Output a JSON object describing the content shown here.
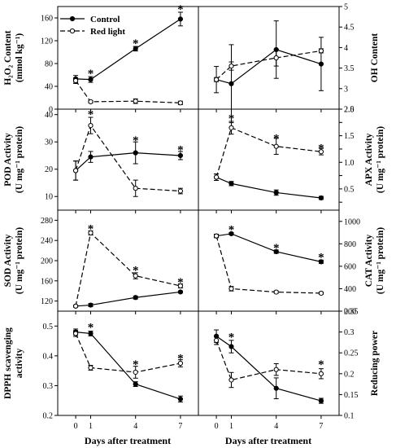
{
  "x_axis_label": "Days after treatment",
  "legend": {
    "control": "Control",
    "red": "Red light"
  },
  "colors": {
    "line": "#000000",
    "open_marker_fill": "#ffffff"
  },
  "chart_data": [
    {
      "id": "h2o2",
      "type": "line",
      "side": "left",
      "row": 0,
      "ylabel": [
        "H₂O₂ Content",
        "(mmol kg⁻¹)"
      ],
      "ylim": [
        0,
        180
      ],
      "yticks": [
        0,
        40,
        80,
        120,
        160
      ],
      "x": [
        0,
        1,
        4,
        7
      ],
      "x_ticks": [
        "0",
        "1",
        "4",
        "7"
      ],
      "series": [
        {
          "name": "Control",
          "style": "solid",
          "marker": "filled",
          "values": [
            53,
            52,
            106,
            158
          ],
          "errors": [
            6,
            5,
            4,
            12
          ]
        },
        {
          "name": "Red light",
          "style": "dashed",
          "marker": "open",
          "values": [
            50,
            13,
            14,
            11
          ],
          "errors": [
            5,
            2,
            4,
            3
          ]
        }
      ],
      "stars": [
        {
          "x": 1,
          "y": 64
        },
        {
          "x": 4,
          "y": 117
        },
        {
          "x": 7,
          "y": 177
        }
      ]
    },
    {
      "id": "oh",
      "type": "line",
      "side": "right",
      "row": 0,
      "ylabel": [
        "OH Content"
      ],
      "ylim": [
        2.5,
        5.0
      ],
      "yticks": [
        2.5,
        3.0,
        3.5,
        4.0,
        4.5,
        5.0
      ],
      "x": [
        0,
        1,
        4,
        7
      ],
      "x_ticks": [
        "0",
        "1",
        "4",
        "7"
      ],
      "series": [
        {
          "name": "Control",
          "style": "solid",
          "marker": "filled",
          "values": [
            3.22,
            3.12,
            3.95,
            3.6
          ],
          "errors": [
            0.32,
            0.95,
            0.7,
            0.65
          ]
        },
        {
          "name": "Red light",
          "style": "dashed",
          "marker": "open",
          "values": [
            3.22,
            3.55,
            3.75,
            3.92
          ],
          "errors": [
            0.05,
            0.1,
            0.2,
            0.05
          ]
        }
      ],
      "stars": []
    },
    {
      "id": "pod",
      "type": "line",
      "side": "left",
      "row": 1,
      "ylabel": [
        "POD Activity",
        "(U mg⁻¹ protein)"
      ],
      "ylim": [
        5,
        42
      ],
      "yticks": [
        10,
        20,
        30,
        40
      ],
      "x": [
        0,
        1,
        4,
        7
      ],
      "x_ticks": [
        "0",
        "1",
        "4",
        "7"
      ],
      "series": [
        {
          "name": "Control",
          "style": "solid",
          "marker": "filled",
          "values": [
            19.5,
            24.5,
            26,
            25
          ],
          "errors": [
            3.5,
            2,
            4,
            1.5
          ]
        },
        {
          "name": "Red light",
          "style": "dashed",
          "marker": "open",
          "values": [
            19.5,
            36,
            13,
            12
          ],
          "errors": [
            3.5,
            3,
            3,
            1
          ]
        }
      ],
      "stars": [
        {
          "x": 1,
          "y": 40.5
        },
        {
          "x": 4,
          "y": 31
        },
        {
          "x": 7,
          "y": 27.5
        }
      ]
    },
    {
      "id": "apx",
      "type": "line",
      "side": "right",
      "row": 1,
      "ylabel": [
        "APX Activity",
        "(U mg⁻¹ protein)"
      ],
      "ylim": [
        0.1,
        2.0
      ],
      "yticks": [
        0.25,
        0.5,
        0.75,
        1.0,
        1.25,
        1.5,
        1.75,
        2.0
      ],
      "ytick_labels": [
        "",
        "0.5",
        "",
        "1.0",
        "",
        "1.5",
        "",
        "2.0"
      ],
      "x": [
        0,
        1,
        4,
        7
      ],
      "x_ticks": [
        "0",
        "1",
        "4",
        "7"
      ],
      "series": [
        {
          "name": "Control",
          "style": "solid",
          "marker": "filled",
          "values": [
            0.72,
            0.6,
            0.43,
            0.33
          ],
          "errors": [
            0.06,
            0.04,
            0.05,
            0.03
          ]
        },
        {
          "name": "Red light",
          "style": "dashed",
          "marker": "open",
          "values": [
            0.72,
            1.65,
            1.3,
            1.2
          ],
          "errors": [
            0.06,
            0.12,
            0.15,
            0.06
          ]
        }
      ],
      "stars": [
        {
          "x": 1,
          "y": 1.85
        },
        {
          "x": 4,
          "y": 1.47
        },
        {
          "x": 7,
          "y": 1.29
        }
      ]
    },
    {
      "id": "sod",
      "type": "line",
      "side": "left",
      "row": 2,
      "ylabel": [
        "SOD Activity",
        "(U mg⁻¹ protein)"
      ],
      "ylim": [
        100,
        300
      ],
      "yticks": [
        120,
        160,
        200,
        240,
        280
      ],
      "x": [
        0,
        1,
        4,
        7
      ],
      "x_ticks": [
        "0",
        "1",
        "4",
        "7"
      ],
      "series": [
        {
          "name": "Control",
          "style": "solid",
          "marker": "filled",
          "values": [
            110,
            112,
            127,
            138
          ],
          "errors": [
            2,
            3,
            3,
            2
          ]
        },
        {
          "name": "Red light",
          "style": "dashed",
          "marker": "open",
          "values": [
            110,
            255,
            170,
            150
          ],
          "errors": [
            2,
            4,
            6,
            4
          ]
        }
      ],
      "stars": [
        {
          "x": 1,
          "y": 265
        },
        {
          "x": 4,
          "y": 183
        },
        {
          "x": 7,
          "y": 160
        }
      ]
    },
    {
      "id": "cat",
      "type": "line",
      "side": "right",
      "row": 2,
      "ylabel": [
        "CAT Activity",
        "(U mg⁻¹ protein)"
      ],
      "ylim": [
        200,
        1100
      ],
      "yticks": [
        200,
        400,
        600,
        800,
        1000
      ],
      "x": [
        0,
        1,
        4,
        7
      ],
      "x_ticks": [
        "0",
        "1",
        "4",
        "7"
      ],
      "series": [
        {
          "name": "Control",
          "style": "solid",
          "marker": "filled",
          "values": [
            870,
            890,
            730,
            640
          ],
          "errors": [
            15,
            10,
            15,
            15
          ]
        },
        {
          "name": "Red light",
          "style": "dashed",
          "marker": "open",
          "values": [
            870,
            400,
            370,
            360
          ],
          "errors": [
            15,
            20,
            10,
            10
          ]
        }
      ],
      "stars": [
        {
          "x": 1,
          "y": 935
        },
        {
          "x": 4,
          "y": 775
        },
        {
          "x": 7,
          "y": 690
        }
      ]
    },
    {
      "id": "dpph",
      "type": "line",
      "side": "left",
      "row": 3,
      "ylabel": [
        "DPPH scavenging",
        "activity"
      ],
      "ylim": [
        0.2,
        0.55
      ],
      "yticks": [
        0.2,
        0.3,
        0.4,
        0.5
      ],
      "x": [
        0,
        1,
        4,
        7
      ],
      "x_ticks": [
        "0",
        "1",
        "4",
        "7"
      ],
      "series": [
        {
          "name": "Control",
          "style": "solid",
          "marker": "filled",
          "values": [
            0.48,
            0.475,
            0.305,
            0.255
          ],
          "errors": [
            0.01,
            0.008,
            0.008,
            0.01
          ]
        },
        {
          "name": "Red light",
          "style": "dashed",
          "marker": "open",
          "values": [
            0.475,
            0.36,
            0.345,
            0.375
          ],
          "errors": [
            0.01,
            0.008,
            0.02,
            0.012
          ]
        }
      ],
      "stars": [
        {
          "x": 1,
          "y": 0.5
        },
        {
          "x": 4,
          "y": 0.375
        },
        {
          "x": 7,
          "y": 0.395
        }
      ]
    },
    {
      "id": "reducing",
      "type": "line",
      "side": "right",
      "row": 3,
      "ylabel": [
        "Reducing power"
      ],
      "ylim": [
        0.1,
        0.35
      ],
      "yticks": [
        0.1,
        0.15,
        0.2,
        0.25,
        0.3,
        0.35
      ],
      "x": [
        0,
        1,
        4,
        7
      ],
      "x_ticks": [
        "0",
        "1",
        "4",
        "7"
      ],
      "series": [
        {
          "name": "Control",
          "style": "solid",
          "marker": "filled",
          "values": [
            0.29,
            0.265,
            0.165,
            0.135
          ],
          "errors": [
            0.015,
            0.015,
            0.025,
            0.006
          ]
        },
        {
          "name": "Red light",
          "style": "dashed",
          "marker": "open",
          "values": [
            0.28,
            0.185,
            0.21,
            0.2
          ],
          "errors": [
            0.01,
            0.018,
            0.014,
            0.012
          ]
        }
      ],
      "stars": [
        {
          "x": 1,
          "y": 0.29
        },
        {
          "x": 7,
          "y": 0.225
        }
      ]
    }
  ]
}
